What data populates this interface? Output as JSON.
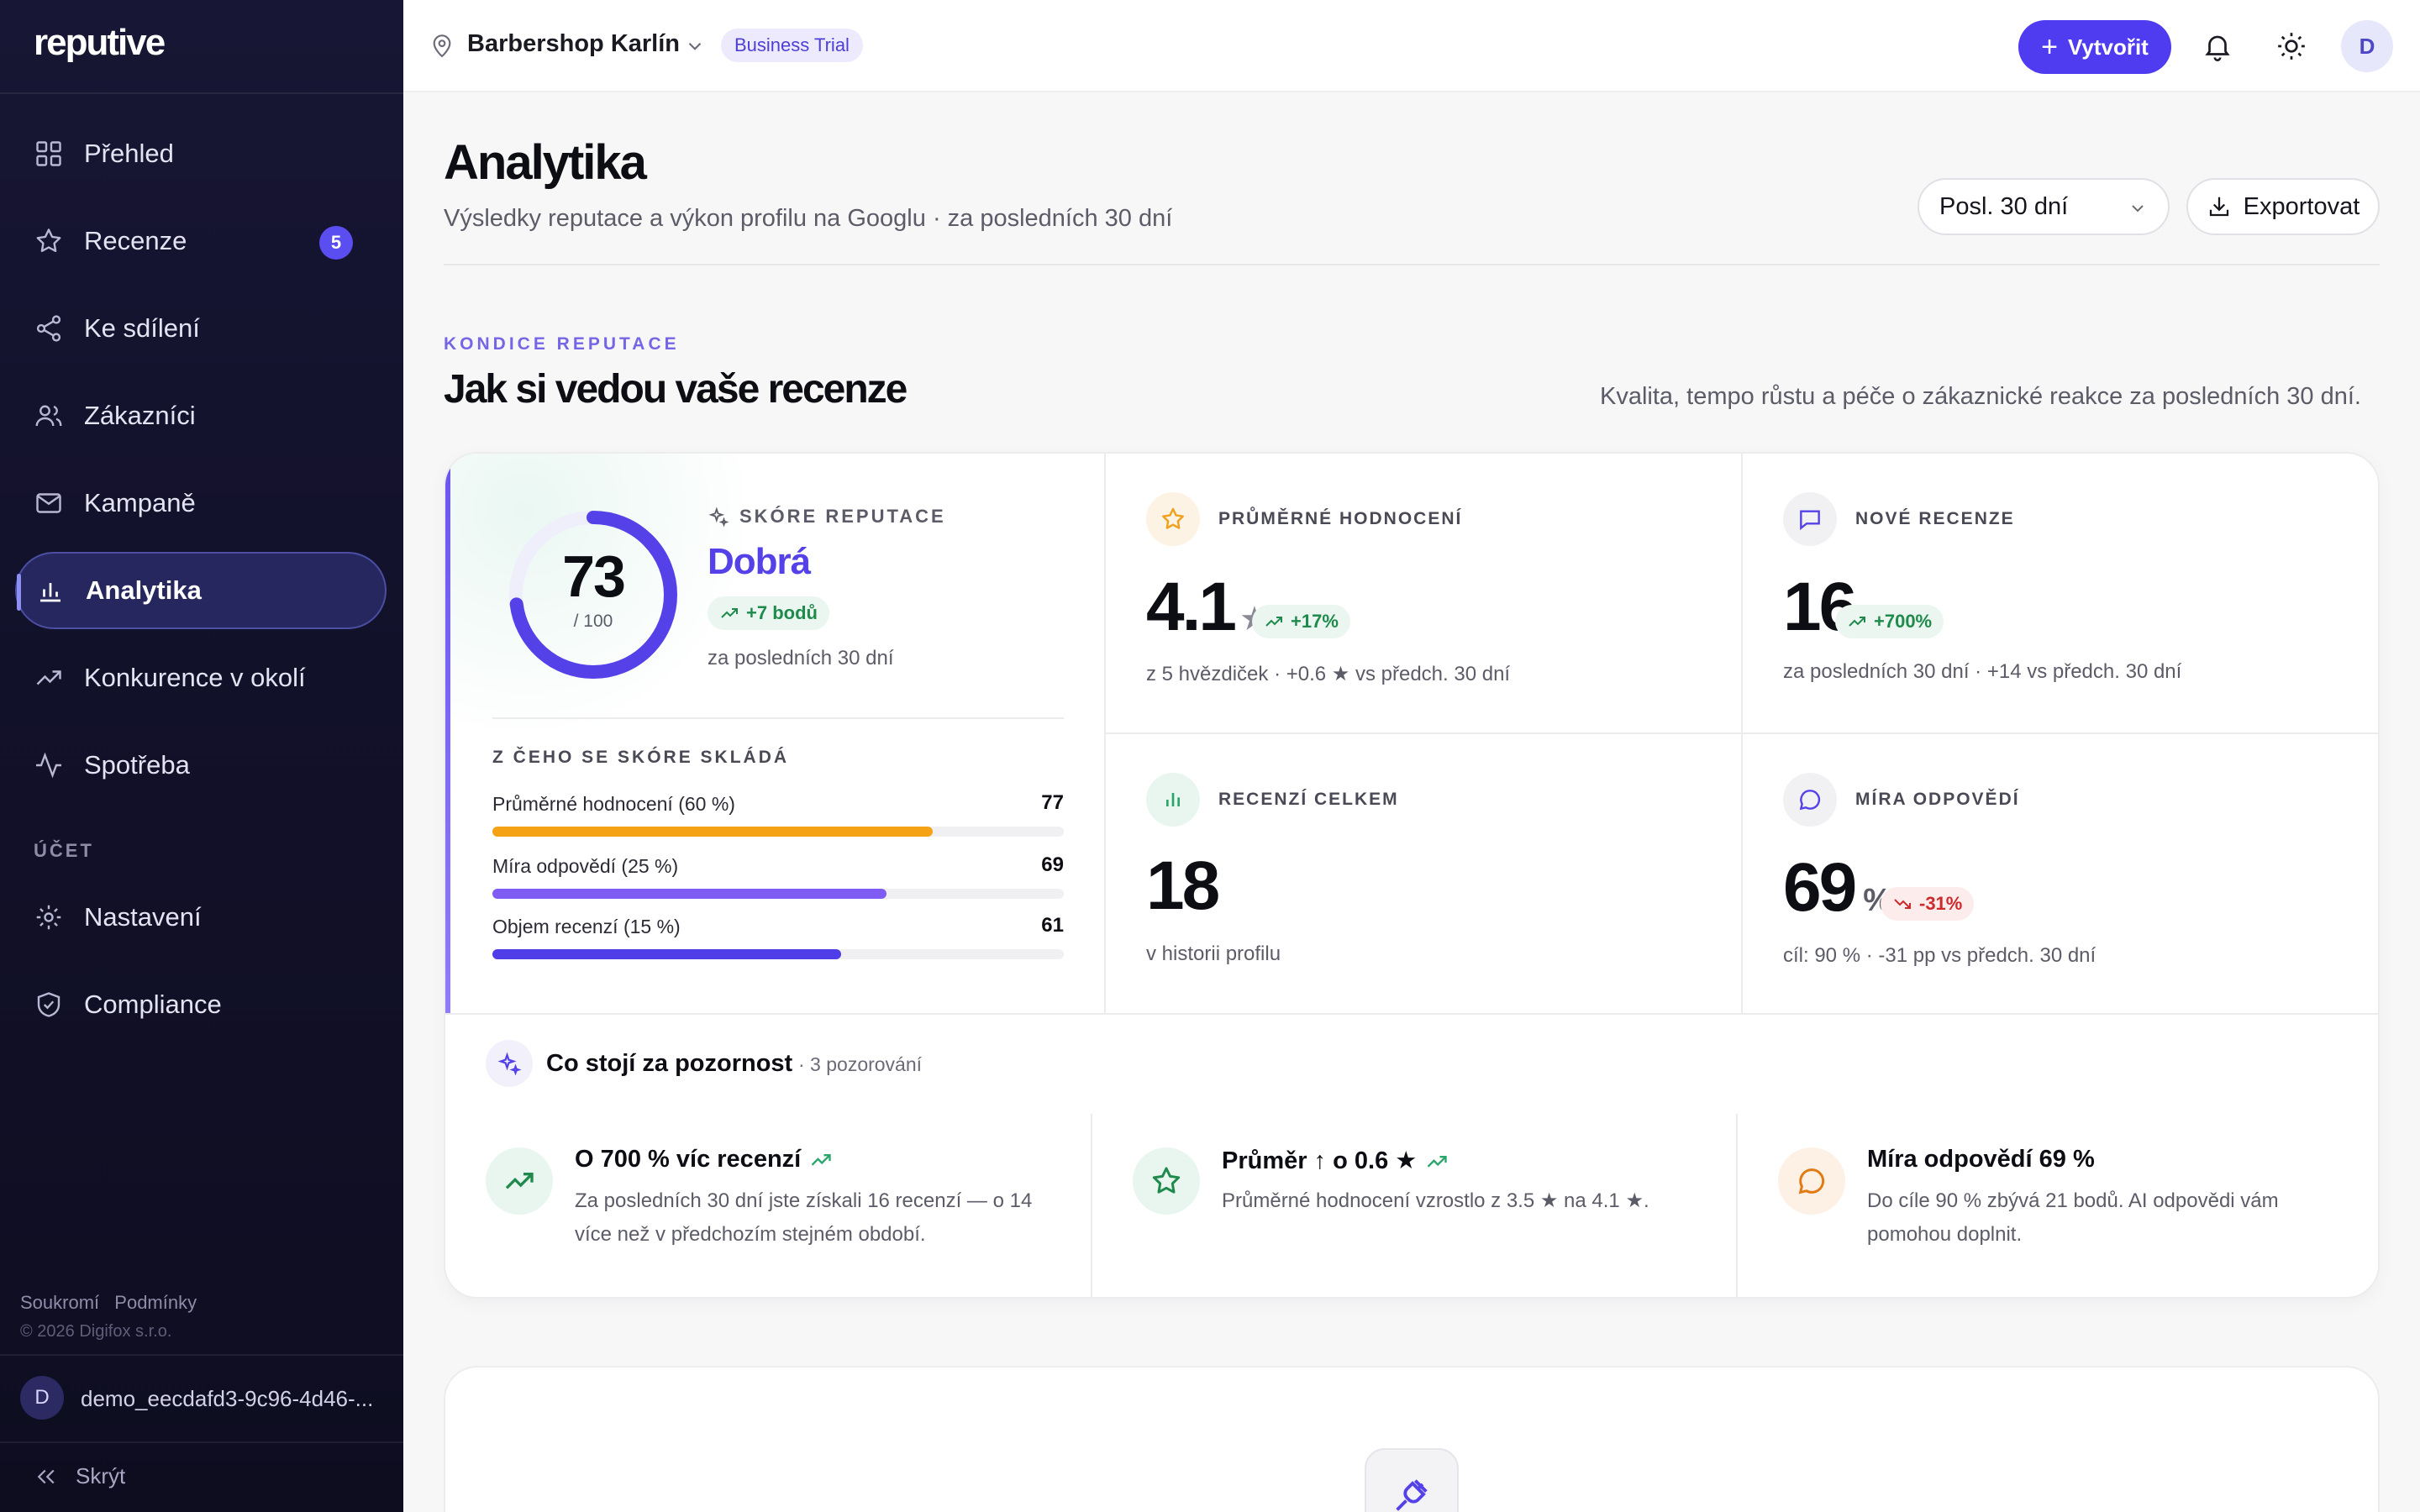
{
  "app": {
    "logo": "reputive"
  },
  "sidebar": {
    "items": [
      {
        "label": "Přehled"
      },
      {
        "label": "Recenze",
        "badge": "5"
      },
      {
        "label": "Ke sdílení"
      },
      {
        "label": "Zákazníci"
      },
      {
        "label": "Kampaně"
      },
      {
        "label": "Analytika",
        "active": true
      },
      {
        "label": "Konkurence v okolí"
      },
      {
        "label": "Spotřeba"
      }
    ],
    "section_account": "ÚČET",
    "account_items": [
      {
        "label": "Nastavení"
      },
      {
        "label": "Compliance"
      }
    ],
    "footer": {
      "privacy": "Soukromí",
      "terms": "Podmínky",
      "copyright": "© 2026 Digifox s.r.o."
    },
    "user": {
      "initial": "D",
      "name": "demo_eecdafd3-9c96-4d46-..."
    },
    "hide_label": "Skrýt"
  },
  "topbar": {
    "business_name": "Barbershop Karlín",
    "plan_badge": "Business Trial",
    "create_label": "Vytvořit",
    "avatar_initial": "D"
  },
  "header": {
    "title": "Analytika",
    "subtitle": "Výsledky reputace a výkon profilu na Googlu · za posledních 30 dní",
    "period_value": "Posl. 30 dní",
    "export_label": "Exportovat"
  },
  "section": {
    "eyebrow": "KONDICE REPUTACE",
    "title": "Jak si vedou vaše recenze",
    "description": "Kvalita, tempo růstu a péče o zákaznické reakce za posledních 30 dní."
  },
  "score": {
    "value": "73",
    "max": "/ 100",
    "progress": 0.73,
    "label": "SKÓRE REPUTACE",
    "grade": "Dobrá",
    "delta": "+7 bodů",
    "period": "za posledních 30 dní",
    "composition_title": "Z ČEHO SE SKÓRE SKLÁDÁ",
    "components": [
      {
        "label": "Průměrné hodnocení (60 %)",
        "value": "77",
        "fill": 0.77,
        "color": "#f5a214"
      },
      {
        "label": "Míra odpovědí (25 %)",
        "value": "69",
        "fill": 0.69,
        "color": "#7f5cf4"
      },
      {
        "label": "Objem recenzí (15 %)",
        "value": "61",
        "fill": 0.61,
        "color": "#4e3de8"
      }
    ]
  },
  "kpis": {
    "avg_rating": {
      "label": "PRŮMĚRNÉ HODNOCENÍ",
      "value": "4.1",
      "unit": "★",
      "delta": "+17%",
      "sub": "z 5 hvězdiček · +0.6 ★ vs předch. 30 dní"
    },
    "new_reviews": {
      "label": "NOVÉ RECENZE",
      "value": "16",
      "delta": "+700%",
      "sub": "za posledních 30 dní · +14 vs předch. 30 dní"
    },
    "total_reviews": {
      "label": "RECENZÍ CELKEM",
      "value": "18",
      "sub": "v historii profilu"
    },
    "response_rate": {
      "label": "MÍRA ODPOVĚDÍ",
      "value": "69",
      "unit": "%",
      "delta": "-31%",
      "sub": "cíl: 90 % · -31 pp vs předch. 30 dní"
    }
  },
  "insights": {
    "title": "Co stojí za pozornost",
    "count": "· 3 pozorování",
    "items": [
      {
        "title": "O 700 % víc recenzí",
        "body": "Za posledních 30 dní jste získali 16 recenzí — o 14 více než v předchozím stejném období."
      },
      {
        "title": "Průměr ↑ o 0.6 ★",
        "body": "Průměrné hodnocení vzrostlo z 3.5 ★ na 4.1 ★."
      },
      {
        "title": "Míra odpovědí 69 %",
        "body": "Do cíle 90 % zbývá 21 bodů. AI odpovědi vám pomohou doplnit."
      }
    ]
  },
  "colors": {
    "accent": "#4f3cf0",
    "positive": "#1f8a4c",
    "negative": "#cc2b2b"
  }
}
